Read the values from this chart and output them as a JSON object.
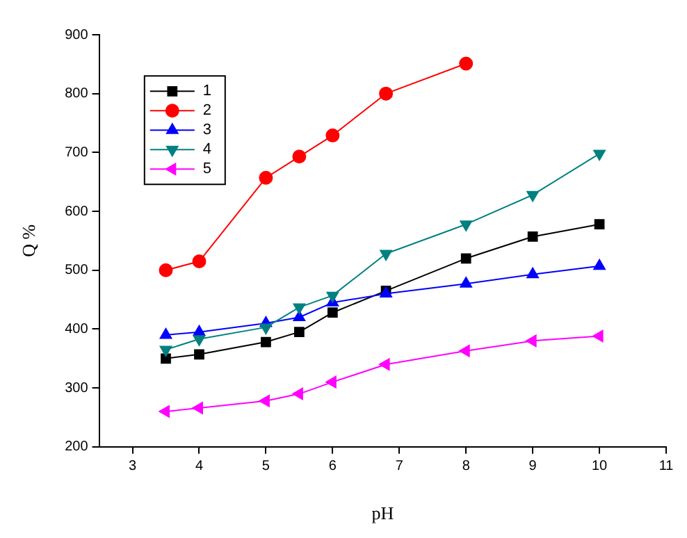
{
  "chart_data": {
    "type": "line",
    "xlabel": "pH",
    "ylabel": "Q %",
    "x": [
      3.5,
      4,
      5,
      5.5,
      6,
      6.8,
      8,
      9,
      10
    ],
    "series": [
      {
        "name": "1",
        "color": "#000000",
        "marker": "square",
        "values": [
          350,
          357,
          378,
          395,
          428,
          465,
          520,
          557,
          578
        ]
      },
      {
        "name": "2",
        "color": "#ff0000",
        "marker": "circle",
        "values": [
          500,
          515,
          657,
          693,
          729,
          800,
          851,
          null,
          null
        ]
      },
      {
        "name": "3",
        "color": "#0000ff",
        "marker": "triangle",
        "values": [
          390,
          395,
          410,
          420,
          445,
          460,
          477,
          493,
          507
        ]
      },
      {
        "name": "4",
        "color": "#008080",
        "marker": "triangle-down",
        "values": [
          365,
          383,
          403,
          437,
          457,
          528,
          578,
          628,
          698
        ]
      },
      {
        "name": "5",
        "color": "#ff00ff",
        "marker": "triangle-left",
        "values": [
          260,
          266,
          278,
          290,
          310,
          340,
          363,
          380,
          388
        ]
      }
    ],
    "xlim": [
      2.5,
      11
    ],
    "xticks": [
      3,
      4,
      5,
      6,
      7,
      8,
      9,
      10,
      11
    ],
    "ylim": [
      200,
      900
    ],
    "yticks": [
      200,
      300,
      400,
      500,
      600,
      700,
      800,
      900
    ],
    "grid": false,
    "legend": "top left",
    "line_style": "solid"
  }
}
